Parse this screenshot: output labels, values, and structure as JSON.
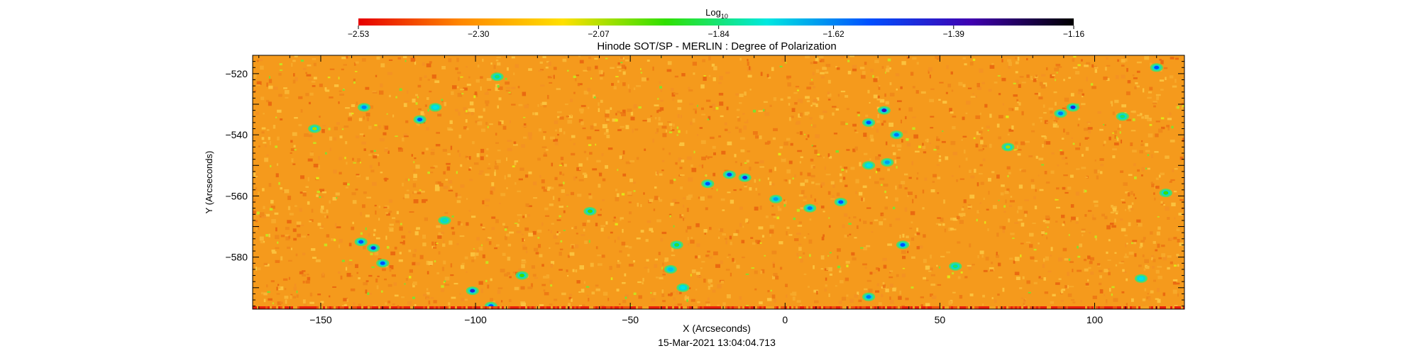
{
  "chart_data": {
    "type": "heatmap",
    "title": "Hinode SOT/SP - MERLIN : Degree of Polarization",
    "xlabel": "X (Arcseconds)",
    "ylabel": "Y (Arcseconds)",
    "timestamp": "15-Mar-2021 13:04:04.713",
    "xlim": [
      -172,
      129
    ],
    "ylim": [
      -597,
      -514
    ],
    "xticks": [
      -150,
      -100,
      -50,
      0,
      50,
      100
    ],
    "xtick_labels": [
      "−150",
      "−100",
      "−50",
      "0",
      "50",
      "100"
    ],
    "yticks": [
      -520,
      -540,
      -560,
      -580
    ],
    "ytick_labels": [
      "−520",
      "−540",
      "−560",
      "−580"
    ],
    "colorbar": {
      "label_base": "Log",
      "label_sub": "10",
      "min": -2.53,
      "max": -1.16,
      "ticks": [
        -2.53,
        -2.3,
        -2.07,
        -1.84,
        -1.62,
        -1.39,
        -1.16
      ],
      "tick_labels": [
        "−2.53",
        "−2.30",
        "−2.07",
        "−1.84",
        "−1.62",
        "−1.39",
        "−1.16"
      ],
      "colors": [
        "#e60000",
        "#ff8800",
        "#ffe000",
        "#30e000",
        "#00e8e0",
        "#0050ff",
        "#4000b0",
        "#000000"
      ]
    },
    "background_value": -2.35,
    "polarization_patches": [
      {
        "x": -136,
        "y": -531,
        "v": -1.62
      },
      {
        "x": -118,
        "y": -535,
        "v": -1.55
      },
      {
        "x": -113,
        "y": -531,
        "v": -1.75
      },
      {
        "x": -93,
        "y": -521,
        "v": -1.85
      },
      {
        "x": -110,
        "y": -568,
        "v": -1.8
      },
      {
        "x": -137,
        "y": -575,
        "v": -1.55
      },
      {
        "x": -133,
        "y": -577,
        "v": -1.45
      },
      {
        "x": -130,
        "y": -582,
        "v": -1.55
      },
      {
        "x": -101,
        "y": -591,
        "v": -1.45
      },
      {
        "x": -95,
        "y": -596,
        "v": -1.55
      },
      {
        "x": -85,
        "y": -586,
        "v": -1.95
      },
      {
        "x": -63,
        "y": -565,
        "v": -1.95
      },
      {
        "x": -35,
        "y": -576,
        "v": -1.9
      },
      {
        "x": -37,
        "y": -584,
        "v": -1.7
      },
      {
        "x": -33,
        "y": -590,
        "v": -1.75
      },
      {
        "x": -25,
        "y": -556,
        "v": -1.55
      },
      {
        "x": -18,
        "y": -553,
        "v": -1.5
      },
      {
        "x": -13,
        "y": -554,
        "v": -1.45
      },
      {
        "x": -3,
        "y": -561,
        "v": -1.65
      },
      {
        "x": 8,
        "y": -564,
        "v": -1.6
      },
      {
        "x": 18,
        "y": -562,
        "v": -1.55
      },
      {
        "x": 27,
        "y": -536,
        "v": -1.55
      },
      {
        "x": 32,
        "y": -532,
        "v": -1.4
      },
      {
        "x": 36,
        "y": -540,
        "v": -1.6
      },
      {
        "x": 33,
        "y": -549,
        "v": -1.65
      },
      {
        "x": 27,
        "y": -550,
        "v": -1.75
      },
      {
        "x": 38,
        "y": -576,
        "v": -1.55
      },
      {
        "x": 27,
        "y": -593,
        "v": -1.6
      },
      {
        "x": 55,
        "y": -583,
        "v": -1.85
      },
      {
        "x": 93,
        "y": -531,
        "v": -1.45
      },
      {
        "x": 89,
        "y": -533,
        "v": -1.6
      },
      {
        "x": 109,
        "y": -534,
        "v": -1.85
      },
      {
        "x": 120,
        "y": -518,
        "v": -1.55
      },
      {
        "x": 115,
        "y": -587,
        "v": -1.75
      },
      {
        "x": 123,
        "y": -559,
        "v": -1.95
      },
      {
        "x": -152,
        "y": -538,
        "v": -2.05
      },
      {
        "x": 72,
        "y": -544,
        "v": -2.05
      }
    ]
  }
}
